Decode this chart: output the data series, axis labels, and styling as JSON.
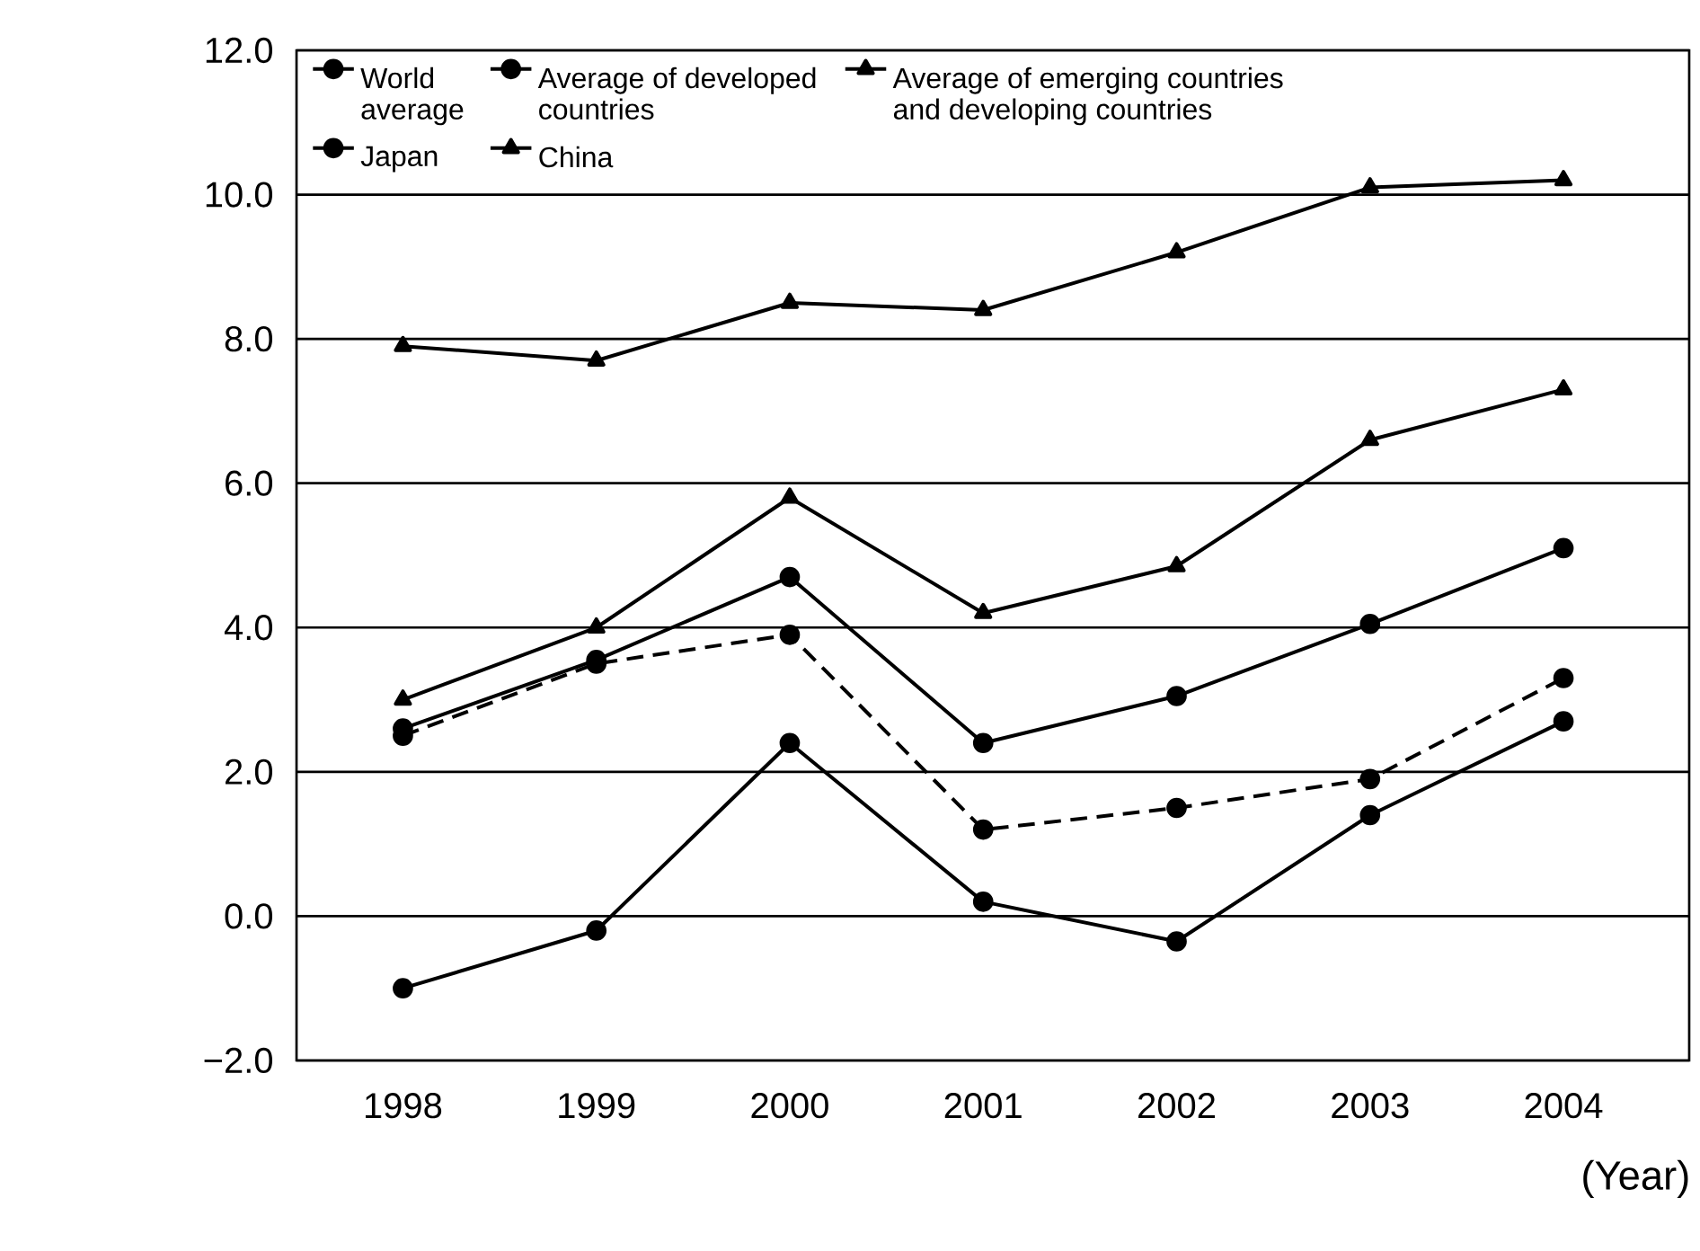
{
  "chart_data": {
    "type": "line",
    "xlabel": "(Year)",
    "categories": [
      "1998",
      "1999",
      "2000",
      "2001",
      "2002",
      "2003",
      "2004"
    ],
    "series": [
      {
        "name": "World average",
        "color": "#000000",
        "marker": "circle",
        "line_style": "solid",
        "values": [
          2.6,
          3.55,
          4.7,
          2.4,
          3.05,
          4.05,
          5.1
        ]
      },
      {
        "name": "Average of developed countries",
        "color": "#000000",
        "marker": "circle",
        "line_style": "dashed",
        "values": [
          2.5,
          3.5,
          3.9,
          1.2,
          1.5,
          1.9,
          3.3
        ]
      },
      {
        "name": "Average of emerging countries and developing countries",
        "color": "#000000",
        "marker": "triangle",
        "line_style": "solid",
        "values": [
          3.0,
          4.0,
          5.8,
          4.2,
          4.85,
          6.6,
          7.3
        ]
      },
      {
        "name": "Japan",
        "color": "#000000",
        "marker": "circle",
        "line_style": "solid",
        "values": [
          -1.0,
          -0.2,
          2.4,
          0.2,
          -0.35,
          1.4,
          2.7
        ]
      },
      {
        "name": "China",
        "color": "#000000",
        "marker": "triangle",
        "line_style": "solid",
        "values": [
          7.9,
          7.7,
          8.5,
          8.4,
          9.2,
          10.1,
          10.2
        ]
      }
    ],
    "ylim": [
      -2,
      12
    ],
    "yticks": [
      {
        "value": -2,
        "label": "−2.0"
      },
      {
        "value": 0,
        "label": "0.0"
      },
      {
        "value": 2,
        "label": "2.0"
      },
      {
        "value": 4,
        "label": "4.0"
      },
      {
        "value": 6,
        "label": "6.0"
      },
      {
        "value": 8,
        "label": "8.0"
      },
      {
        "value": 10,
        "label": "10.0"
      },
      {
        "value": 12,
        "label": "12.0"
      }
    ],
    "grid": "y",
    "legend": "top left"
  }
}
